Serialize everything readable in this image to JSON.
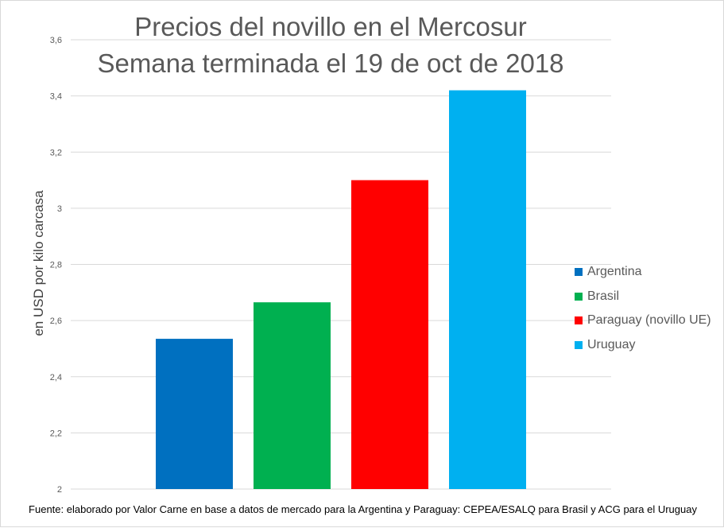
{
  "chart_data": {
    "type": "bar",
    "title": "Precios del novillo en el Mercosur",
    "subtitle": "Semana terminada el 19 de oct de 2018",
    "xlabel": "",
    "ylabel": "en USD por kilo carcasa",
    "ylim": [
      2,
      3.6
    ],
    "yticks": [
      "2",
      "2,2",
      "2,4",
      "2,6",
      "2,8",
      "3",
      "3,2",
      "3,4",
      "3,6"
    ],
    "grid": true,
    "legend_position": "right",
    "series": [
      {
        "name": "Argentina",
        "value": 2.535,
        "color": "#0070c0"
      },
      {
        "name": "Brasil",
        "value": 2.665,
        "color": "#00b050"
      },
      {
        "name": "Paraguay (novillo UE)",
        "value": 3.1,
        "color": "#ff0000"
      },
      {
        "name": "Uruguay",
        "value": 3.42,
        "color": "#00b0f0"
      }
    ],
    "source": "Fuente: elaborado por Valor Carne en base a datos de mercado para la Argentina y Paraguay: CEPEA/ESALQ para Brasil y ACG para el Uruguay"
  }
}
